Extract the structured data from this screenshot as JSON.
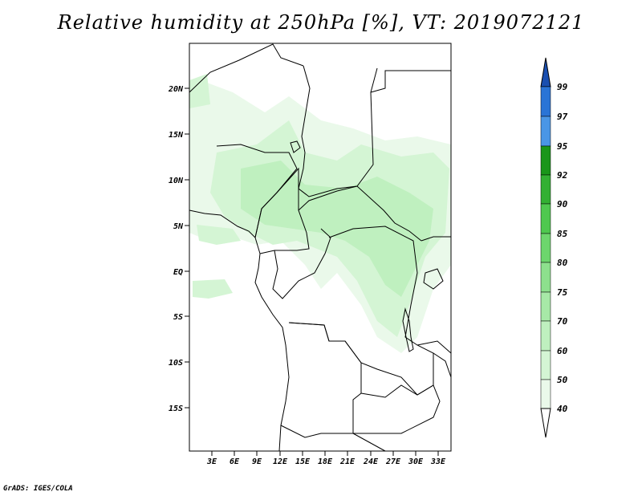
{
  "title": "Relative humidity at 250hPa [%], VT: 2019072121",
  "footer": "GrADS: IGES/COLA",
  "lat_ticks": [
    "20N",
    "15N",
    "10N",
    "5N",
    "EQ",
    "5S",
    "10S",
    "15S"
  ],
  "lon_ticks": [
    "3E",
    "6E",
    "9E",
    "12E",
    "15E",
    "18E",
    "21E",
    "24E",
    "27E",
    "30E",
    "33E"
  ],
  "colorbar": {
    "labels": [
      "40",
      "50",
      "60",
      "70",
      "75",
      "80",
      "85",
      "90",
      "92",
      "95",
      "97",
      "99"
    ],
    "colors": {
      "lt40": "#ffffff",
      "40-50": "#eaf9ea",
      "50-60": "#d4f5d4",
      "60-70": "#bff0bf",
      "70-75": "#a7e9a7",
      "75-80": "#8de08d",
      "80-85": "#6dd66d",
      "85-90": "#4fc84f",
      "90-92": "#33b033",
      "92-95": "#1a961a",
      "95-97": "#4a96e6",
      "97-99": "#2a74d6",
      "gt99": "#1a4fb0"
    }
  }
}
